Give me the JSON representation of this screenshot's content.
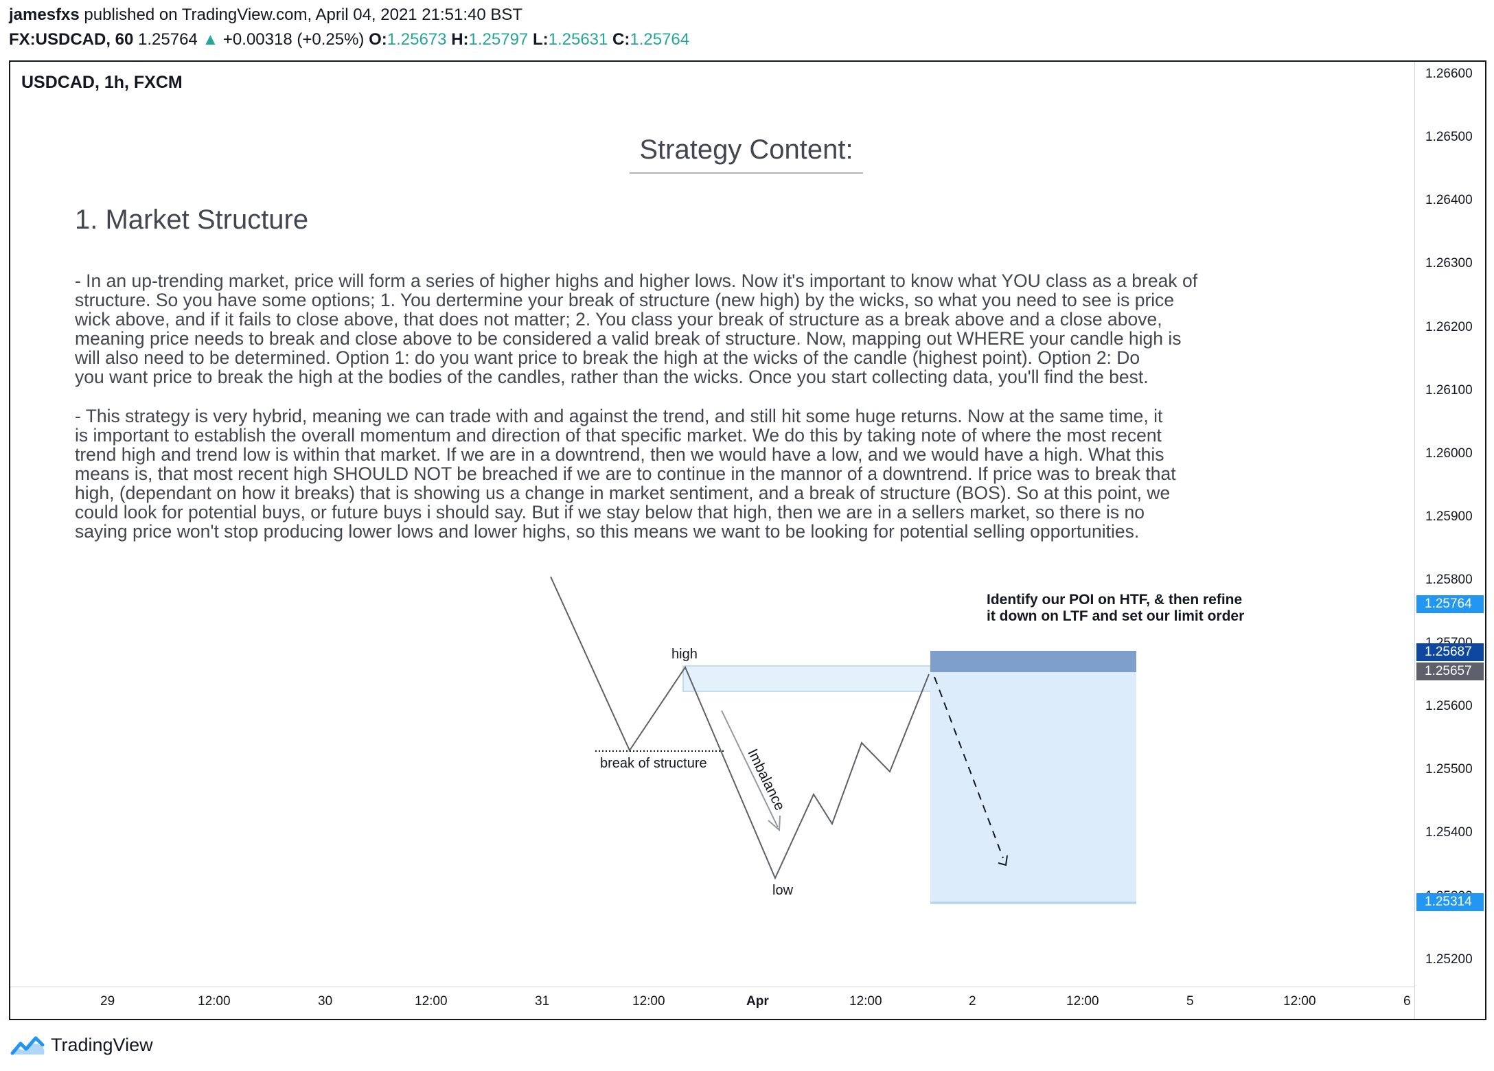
{
  "header": {
    "author": "jamesfxs",
    "published_text": "published on TradingView.com, April 04, 2021 21:51:40 BST",
    "symbol": "FX:USDCAD, 60",
    "last": "1.25764",
    "change": "+0.00318 (+0.25%)",
    "o_label": "O:",
    "o": "1.25673",
    "h_label": "H:",
    "h": "1.25797",
    "l_label": "L:",
    "l": "1.25631",
    "c_label": "C:",
    "c": "1.25764"
  },
  "chart": {
    "symbol_label": "USDCAD, 1h, FXCM",
    "title": "Strategy Content:",
    "heading": "1. Market Structure",
    "paragraph1": [
      "- In an up-trending market, price will form a series of higher highs and higher lows. Now it's important to know what YOU class as a break of",
      "  structure. So you have some options; 1. You dertermine your break of structure (new high) by the wicks, so what you need to see is price",
      "  wick above, and if it fails to close above, that does not matter; 2. You class your break of structure as a break above and a close above,",
      "  meaning price needs to break and close above to be considered a valid break of structure. Now, mapping out WHERE your candle high is",
      "  will also need to be determined. Option 1: do you want price to break the high at the wicks of the candle (highest point). Option 2: Do",
      "  you want price to break the high at the bodies of the candles, rather than the wicks. Once you start collecting data, you'll find the best."
    ],
    "paragraph2": [
      "- This strategy is very hybrid, meaning we can trade with and against the trend, and still hit some huge returns. Now at the same time, it",
      "   is important to establish the overall momentum and direction of that specific market. We do this by taking note of where the most recent",
      "   trend high and trend low is within that market. If we are in a downtrend, then we would have a low, and we would have a high. What this",
      "   means is, that most recent high SHOULD NOT be breached if we are to continue in the mannor of a downtrend. If price was to break that",
      "   high, (dependant on how it breaks) that is showing us a change in market sentiment, and a break of structure (BOS). So at this point, we",
      "   could look for potential buys, or future buys i should say. But if we stay below that high, then we are in a sellers market, so there is no",
      "   saying price won't stop producing lower lows and lower highs, so this means we want to be looking for potential selling opportunities."
    ],
    "annotations": {
      "high": "high",
      "low": "low",
      "bos": "break of structure",
      "imbalance": "Imbalance",
      "note_line1": "Identify our POI on HTF, & then refine",
      "note_line2": "it down on LTF and set our limit order"
    },
    "price_ticks": [
      "1.26600",
      "1.26500",
      "1.26400",
      "1.26300",
      "1.26200",
      "1.26100",
      "1.26000",
      "1.25900",
      "1.25800",
      "1.25700",
      "1.25600",
      "1.25500",
      "1.25400",
      "1.25300",
      "1.25200"
    ],
    "price_labels": {
      "last": "1.25764",
      "entry": "1.25687",
      "stop": "1.25657",
      "target": "1.25314"
    },
    "time_ticks": [
      "29",
      "12:00",
      "30",
      "12:00",
      "31",
      "12:00",
      "Apr",
      "12:00",
      "2",
      "12:00",
      "5",
      "12:00",
      "6"
    ],
    "colors": {
      "last_label": "#2196f3",
      "entry_label": "#0d47a1",
      "stop_label": "#5d606b",
      "target_label": "#2196f3",
      "tp_zone": "#dcecfb",
      "sl_zone": "#7e9fcb",
      "imbalance_zone": "#e3f1fb"
    }
  },
  "footer": {
    "brand": "TradingView"
  }
}
